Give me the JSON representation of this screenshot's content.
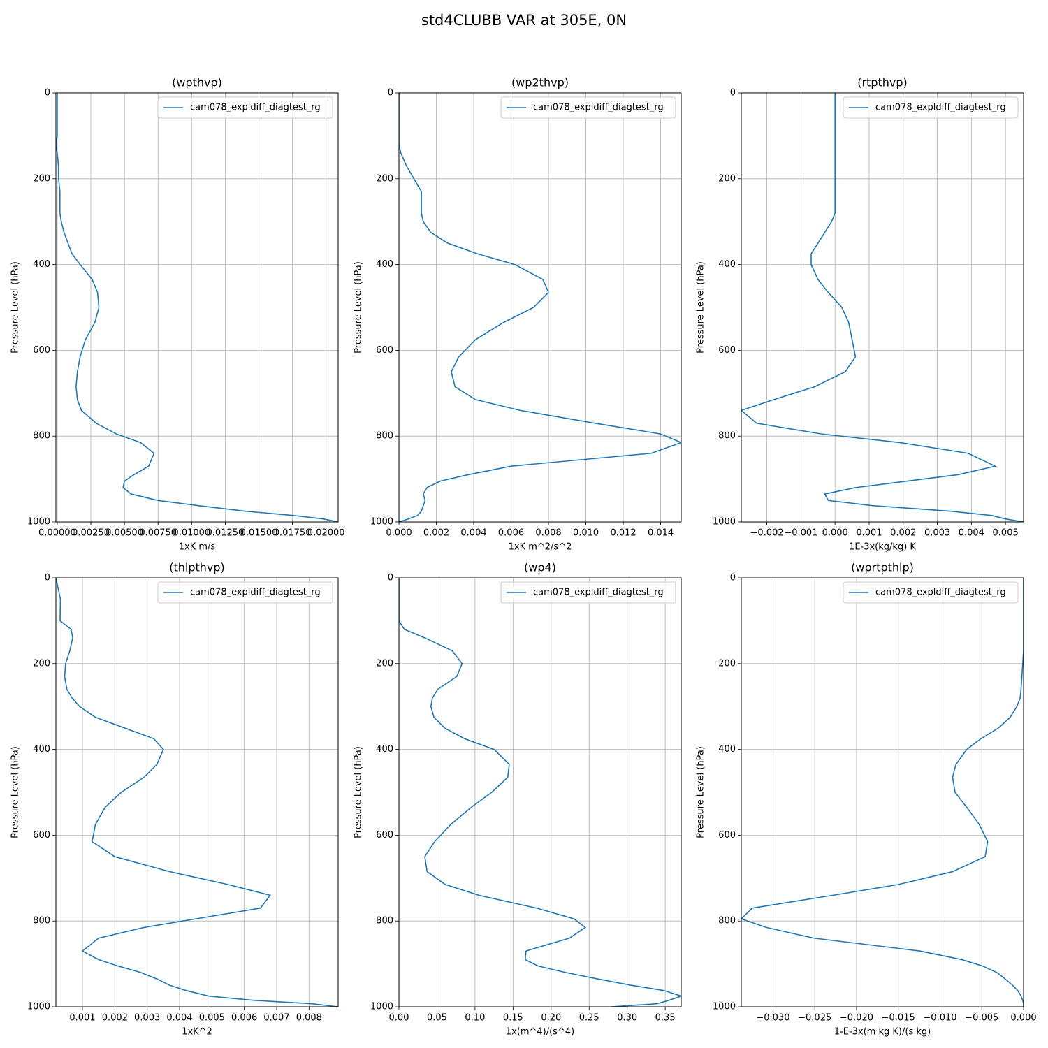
{
  "title": "std4CLUBB VAR at 305E, 0N",
  "chart_data": [
    {
      "type": "line",
      "title": "(wpthvp)",
      "xlabel": "1xK m/s",
      "ylabel": "Pressure Level (hPa)",
      "y": [
        0,
        50,
        100,
        120,
        140,
        170,
        200,
        230,
        260,
        280,
        300,
        325,
        350,
        375,
        400,
        435,
        465,
        500,
        535,
        575,
        615,
        650,
        685,
        715,
        740,
        770,
        795,
        815,
        840,
        870,
        890,
        905,
        920,
        935,
        950,
        962,
        975,
        985,
        993,
        1000
      ],
      "series": [
        {
          "name": "cam078_expldiff_diagtest_rg",
          "color": "#1f77b4",
          "values": [
            0,
            0,
            0,
            -0.0001,
            0,
            0.0001,
            0.0001,
            0.0002,
            0.0002,
            0.0002,
            0.0003,
            0.0005,
            0.0008,
            0.0011,
            0.0017,
            0.0026,
            0.003,
            0.0031,
            0.0028,
            0.0021,
            0.0017,
            0.0015,
            0.0014,
            0.0015,
            0.0018,
            0.0029,
            0.0044,
            0.0062,
            0.0072,
            0.0068,
            0.0057,
            0.005,
            0.0049,
            0.0055,
            0.0075,
            0.0105,
            0.014,
            0.0176,
            0.0198,
            0.0209
          ]
        }
      ],
      "xlim": [
        -0.0001,
        0.0209
      ],
      "xticks": [
        {
          "value": 0,
          "label": "0.00000"
        },
        {
          "value": 0.0025,
          "label": "0.00250"
        },
        {
          "value": 0.005,
          "label": "0.00500"
        },
        {
          "value": 0.0075,
          "label": "0.00750"
        },
        {
          "value": 0.01,
          "label": "0.01000"
        },
        {
          "value": 0.0125,
          "label": "0.01250"
        },
        {
          "value": 0.015,
          "label": "0.01500"
        },
        {
          "value": 0.0175,
          "label": "0.01750"
        },
        {
          "value": 0.02,
          "label": "0.02000"
        }
      ],
      "ylim": [
        1000,
        0
      ],
      "yticks": [
        0,
        200,
        400,
        600,
        800,
        1000
      ],
      "grid": true,
      "legend": "upper right"
    },
    {
      "type": "line",
      "title": "(wp2thvp)",
      "xlabel": "1xK m^2/s^2",
      "ylabel": "Pressure Level (hPa)",
      "y": [
        0,
        50,
        100,
        120,
        140,
        170,
        200,
        230,
        260,
        280,
        300,
        325,
        350,
        375,
        400,
        435,
        465,
        500,
        535,
        575,
        615,
        650,
        685,
        715,
        740,
        770,
        795,
        815,
        840,
        870,
        890,
        905,
        920,
        935,
        950,
        962,
        975,
        985,
        993,
        1000
      ],
      "series": [
        {
          "name": "cam078_expldiff_diagtest_rg",
          "color": "#1f77b4",
          "values": [
            0,
            0,
            0,
            0,
            0.0001,
            0.0004,
            0.0008,
            0.0012,
            0.0012,
            0.0012,
            0.0013,
            0.0017,
            0.0026,
            0.0042,
            0.0062,
            0.0077,
            0.008,
            0.0072,
            0.0056,
            0.0041,
            0.0032,
            0.0028,
            0.003,
            0.0041,
            0.0065,
            0.0105,
            0.014,
            0.0151,
            0.0135,
            0.006,
            0.0037,
            0.0022,
            0.0015,
            0.0013,
            0.0014,
            0.0013,
            0.0012,
            0.001,
            0.0005,
            0
          ]
        }
      ],
      "xlim": [
        0,
        0.0151
      ],
      "xticks": [
        {
          "value": 0,
          "label": "0.000"
        },
        0.002,
        0.004,
        0.006,
        0.008,
        {
          "value": 0.01,
          "label": "0.010"
        },
        0.012,
        0.014
      ],
      "ylim": [
        1000,
        0
      ],
      "yticks": [
        0,
        200,
        400,
        600,
        800,
        1000
      ],
      "grid": true,
      "legend": "upper right"
    },
    {
      "type": "line",
      "title": "(rtpthvp)",
      "xlabel": "1E-3x(kg/kg) K",
      "ylabel": "Pressure Level (hPa)",
      "y": [
        0,
        50,
        100,
        120,
        140,
        170,
        200,
        230,
        260,
        280,
        300,
        325,
        350,
        375,
        400,
        435,
        465,
        500,
        535,
        575,
        615,
        650,
        685,
        715,
        740,
        770,
        795,
        815,
        840,
        870,
        890,
        905,
        920,
        935,
        950,
        962,
        975,
        985,
        993,
        1000
      ],
      "series": [
        {
          "name": "cam078_expldiff_diagtest_rg",
          "color": "#1f77b4",
          "values": [
            0,
            0,
            0,
            0,
            0,
            0,
            0,
            0,
            0,
            0,
            -0.0001,
            -0.0003,
            -0.0005,
            -0.0007,
            -0.0007,
            -0.0005,
            -0.0002,
            0.0002,
            0.0004,
            0.0005,
            0.0006,
            0.0003,
            -0.0006,
            -0.0018,
            -0.00275,
            -0.0023,
            -0.0004,
            0.0019,
            0.0039,
            0.0047,
            0.0036,
            0.0021,
            0.0006,
            -0.0003,
            -0.0002,
            0.0011,
            0.0034,
            0.0046,
            0.005,
            0.00553
          ]
        }
      ],
      "xlim": [
        -0.00275,
        0.00553
      ],
      "xticks": [
        {
          "value": -0.002,
          "label": "−0.002"
        },
        {
          "value": -0.001,
          "label": "−0.001"
        },
        {
          "value": 0,
          "label": "0.000"
        },
        0.001,
        0.002,
        0.003,
        0.004,
        0.005
      ],
      "ylim": [
        1000,
        0
      ],
      "yticks": [
        0,
        200,
        400,
        600,
        800,
        1000
      ],
      "grid": true,
      "legend": "upper right"
    },
    {
      "type": "line",
      "title": "(thlpthvp)",
      "xlabel": "1xK^2",
      "ylabel": "Pressure Level (hPa)",
      "y": [
        0,
        50,
        100,
        120,
        140,
        170,
        200,
        230,
        260,
        280,
        300,
        325,
        350,
        375,
        400,
        435,
        465,
        500,
        535,
        575,
        615,
        650,
        685,
        715,
        740,
        770,
        795,
        815,
        840,
        870,
        890,
        905,
        920,
        935,
        950,
        962,
        975,
        985,
        993,
        1000
      ],
      "series": [
        {
          "name": "cam078_expldiff_diagtest_rg",
          "color": "#1f77b4",
          "values": [
            0.00018,
            0.00032,
            0.00031,
            0.00065,
            0.0007,
            0.00061,
            0.00048,
            0.00045,
            0.00052,
            0.00068,
            0.00091,
            0.0014,
            0.0023,
            0.0032,
            0.0035,
            0.0033,
            0.0029,
            0.0022,
            0.0017,
            0.0014,
            0.0013,
            0.002,
            0.0037,
            0.0055,
            0.0068,
            0.0065,
            0.0045,
            0.0029,
            0.0015,
            0.001,
            0.0015,
            0.0021,
            0.0028,
            0.0033,
            0.0037,
            0.0042,
            0.0049,
            0.0063,
            0.0081,
            0.0089
          ]
        }
      ],
      "xlim": [
        0.00018,
        0.0089
      ],
      "xticks": [
        0.001,
        0.002,
        0.003,
        0.004,
        0.005,
        0.006,
        0.007,
        0.008
      ],
      "ylim": [
        1000,
        0
      ],
      "yticks": [
        0,
        200,
        400,
        600,
        800,
        1000
      ],
      "grid": true,
      "legend": "upper right"
    },
    {
      "type": "line",
      "title": "(wp4)",
      "xlabel": "1x(m^4)/(s^4)",
      "ylabel": "Pressure Level (hPa)",
      "y": [
        0,
        50,
        100,
        120,
        140,
        170,
        200,
        230,
        260,
        280,
        300,
        325,
        350,
        375,
        400,
        435,
        465,
        500,
        535,
        575,
        615,
        650,
        685,
        715,
        740,
        770,
        795,
        815,
        840,
        870,
        890,
        905,
        920,
        935,
        950,
        962,
        975,
        985,
        993,
        1000
      ],
      "series": [
        {
          "name": "cam078_expldiff_diagtest_rg",
          "color": "#1f77b4",
          "values": [
            0,
            0,
            0,
            0.007,
            0.034,
            0.07,
            0.083,
            0.076,
            0.051,
            0.044,
            0.042,
            0.046,
            0.06,
            0.086,
            0.125,
            0.145,
            0.143,
            0.122,
            0.095,
            0.068,
            0.047,
            0.034,
            0.037,
            0.061,
            0.105,
            0.181,
            0.23,
            0.245,
            0.224,
            0.167,
            0.166,
            0.183,
            0.219,
            0.261,
            0.306,
            0.348,
            0.371,
            0.355,
            0.339,
            0.279
          ]
        }
      ],
      "xlim": [
        0,
        0.371
      ],
      "xticks": [
        {
          "value": 0,
          "label": "0.00"
        },
        0.05,
        {
          "value": 0.1,
          "label": "0.10"
        },
        0.15,
        {
          "value": 0.2,
          "label": "0.20"
        },
        0.25,
        {
          "value": 0.3,
          "label": "0.30"
        },
        0.35
      ],
      "ylim": [
        1000,
        0
      ],
      "yticks": [
        0,
        200,
        400,
        600,
        800,
        1000
      ],
      "grid": true,
      "legend": "upper right"
    },
    {
      "type": "line",
      "title": "(wprtpthlp)",
      "xlabel": "1-E-3x(m kg K)/(s kg)",
      "ylabel": "Pressure Level (hPa)",
      "y": [
        0,
        50,
        100,
        120,
        140,
        170,
        200,
        230,
        260,
        280,
        300,
        325,
        350,
        375,
        400,
        435,
        465,
        500,
        535,
        575,
        615,
        650,
        685,
        715,
        740,
        770,
        795,
        815,
        840,
        870,
        890,
        905,
        920,
        935,
        950,
        962,
        975,
        985,
        993,
        1000
      ],
      "series": [
        {
          "name": "cam078_expldiff_diagtest_rg",
          "color": "#1f77b4",
          "values": [
            0,
            0,
            0,
            0,
            0,
            0,
            -0.0001,
            -0.0002,
            -0.0003,
            -0.0004,
            -0.0008,
            -0.0016,
            -0.003,
            -0.0051,
            -0.0068,
            -0.0081,
            -0.0085,
            -0.0082,
            -0.0068,
            -0.0053,
            -0.0043,
            -0.0046,
            -0.0085,
            -0.015,
            -0.0228,
            -0.0325,
            -0.0338,
            -0.0308,
            -0.0251,
            -0.0124,
            -0.0074,
            -0.0049,
            -0.0032,
            -0.0022,
            -0.0013,
            -0.0007,
            -0.0003,
            -0.0001,
            0,
            0
          ]
        }
      ],
      "xlim": [
        -0.0338,
        0
      ],
      "xticks": [
        {
          "value": -0.03,
          "label": "−0.030"
        },
        {
          "value": -0.025,
          "label": "−0.025"
        },
        {
          "value": -0.02,
          "label": "−0.020"
        },
        {
          "value": -0.015,
          "label": "−0.015"
        },
        {
          "value": -0.01,
          "label": "−0.010"
        },
        {
          "value": -0.005,
          "label": "−0.005"
        },
        {
          "value": 0,
          "label": "0.000"
        }
      ],
      "ylim": [
        1000,
        0
      ],
      "yticks": [
        0,
        200,
        400,
        600,
        800,
        1000
      ],
      "grid": true,
      "legend": "upper right"
    }
  ]
}
